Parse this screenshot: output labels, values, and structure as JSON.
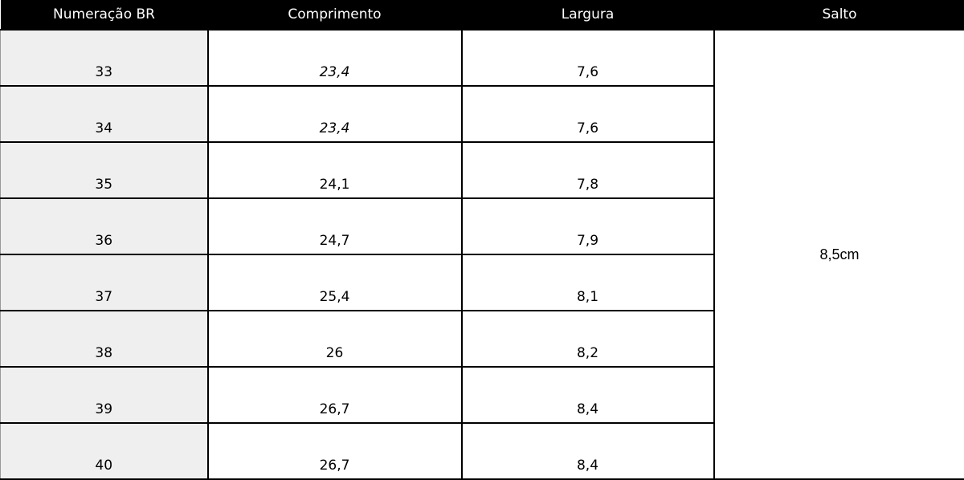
{
  "table": {
    "headers": [
      "Numeração BR",
      "Comprimento",
      "Largura",
      "Salto"
    ],
    "rows": [
      {
        "size": "33",
        "length": "23,4",
        "width": "7,6"
      },
      {
        "size": "34",
        "length": "23,4",
        "width": "7,6"
      },
      {
        "size": "35",
        "length": "24,1",
        "width": "7,8"
      },
      {
        "size": "36",
        "length": "24,7",
        "width": "7,9"
      },
      {
        "size": "37",
        "length": "25,4",
        "width": "8,1"
      },
      {
        "size": "38",
        "length": "26",
        "width": "8,2"
      },
      {
        "size": "39",
        "length": "26,7",
        "width": "8,4"
      },
      {
        "size": "40",
        "length": "26,7",
        "width": "8,4"
      }
    ],
    "heel": "8,5cm"
  }
}
